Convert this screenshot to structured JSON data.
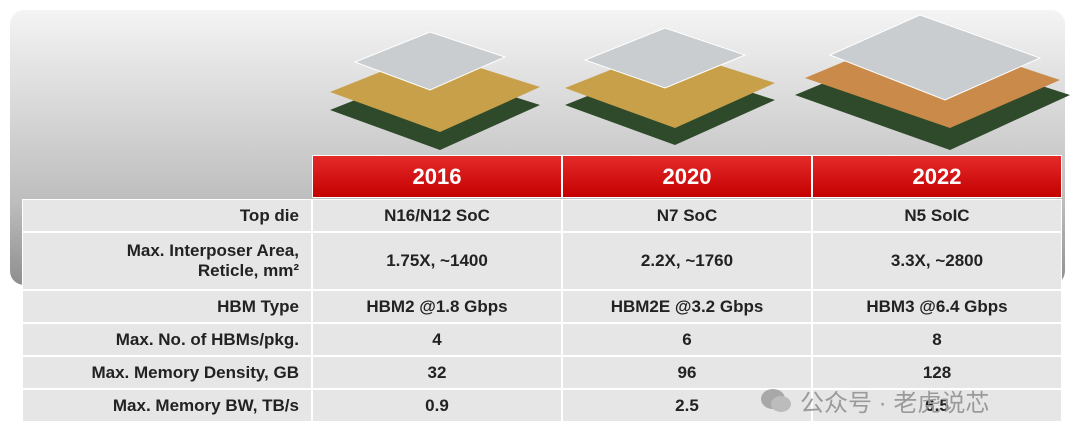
{
  "table": {
    "header": [
      "2016",
      "2020",
      "2022"
    ],
    "rows": [
      {
        "label": "Top die",
        "cells": [
          "N16/N12 SoC",
          "N7 SoC",
          "N5 SoIC"
        ]
      },
      {
        "label": "Max. Interposer Area,\nReticle, mm²",
        "cells": [
          "1.75X, ~1400",
          "2.2X, ~1760",
          "3.3X, ~2800"
        ]
      },
      {
        "label": "HBM Type",
        "cells": [
          "HBM2 @1.8 Gbps",
          "HBM2E @3.2 Gbps",
          "HBM3 @6.4 Gbps"
        ]
      },
      {
        "label": "Max. No. of HBMs/pkg.",
        "cells": [
          "4",
          "6",
          "8"
        ]
      },
      {
        "label": "Max. Memory Density, GB",
        "cells": [
          "32",
          "96",
          "128"
        ]
      },
      {
        "label": "Max. Memory BW, TB/s",
        "cells": [
          "0.9",
          "2.5",
          "6.5"
        ]
      }
    ]
  },
  "watermark": "公众号 · 老虎说芯"
}
